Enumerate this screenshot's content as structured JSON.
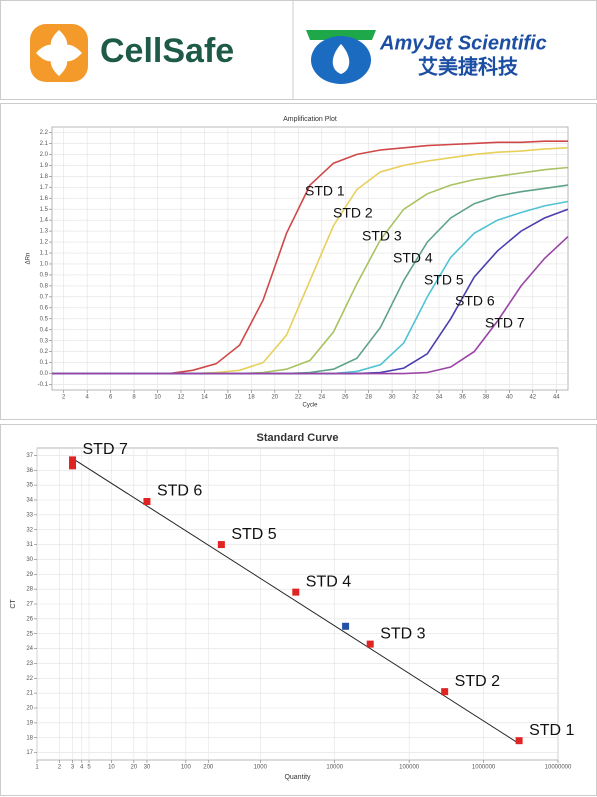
{
  "header": {
    "left_logo": "CellSafe",
    "right_logo": "AmyJet Scientific",
    "right_logo_cn": "艾美捷科技"
  },
  "chart_data": [
    {
      "type": "line",
      "title": "Amplification Plot",
      "x_label": "Cycle",
      "y_label": "ΔRn",
      "x": [
        1,
        3,
        5,
        7,
        9,
        11,
        13,
        15,
        17,
        19,
        21,
        23,
        25,
        27,
        29,
        31,
        33,
        35,
        37,
        39,
        41,
        43,
        45
      ],
      "series": [
        {
          "name": "STD 1",
          "color": "#d04848",
          "values": [
            0,
            0,
            0,
            0,
            0,
            0,
            0.03,
            0.09,
            0.26,
            0.67,
            1.28,
            1.72,
            1.92,
            2.0,
            2.04,
            2.06,
            2.08,
            2.09,
            2.1,
            2.11,
            2.11,
            2.12,
            2.12
          ]
        },
        {
          "name": "STD 2",
          "color": "#e8cf5c",
          "values": [
            0,
            0,
            0,
            0,
            0,
            0,
            0,
            0.01,
            0.03,
            0.1,
            0.35,
            0.85,
            1.35,
            1.68,
            1.84,
            1.9,
            1.94,
            1.97,
            2.0,
            2.02,
            2.03,
            2.05,
            2.06
          ]
        },
        {
          "name": "STD 3",
          "color": "#a9c262",
          "values": [
            0,
            0,
            0,
            0,
            0,
            0,
            0,
            0,
            0,
            0.01,
            0.04,
            0.12,
            0.38,
            0.82,
            1.22,
            1.5,
            1.64,
            1.72,
            1.77,
            1.8,
            1.83,
            1.86,
            1.88
          ]
        },
        {
          "name": "STD 4",
          "color": "#5fa387",
          "values": [
            0,
            0,
            0,
            0,
            0,
            0,
            0,
            0,
            0,
            0,
            0,
            0.01,
            0.04,
            0.14,
            0.42,
            0.85,
            1.2,
            1.42,
            1.55,
            1.62,
            1.66,
            1.69,
            1.72
          ]
        },
        {
          "name": "STD 5",
          "color": "#4fc3d3",
          "values": [
            0,
            0,
            0,
            0,
            0,
            0,
            0,
            0,
            0,
            0,
            0,
            0,
            0,
            0.02,
            0.08,
            0.28,
            0.7,
            1.06,
            1.28,
            1.4,
            1.47,
            1.53,
            1.57
          ]
        },
        {
          "name": "STD 6",
          "color": "#4a3fb0",
          "values": [
            0,
            0,
            0,
            0,
            0,
            0,
            0,
            0,
            0,
            0,
            0,
            0,
            0,
            0,
            0.01,
            0.05,
            0.18,
            0.5,
            0.88,
            1.12,
            1.3,
            1.42,
            1.5
          ]
        },
        {
          "name": "STD 7",
          "color": "#9a45a6",
          "values": [
            0,
            0,
            0,
            0,
            0,
            0,
            0,
            0,
            0,
            0,
            0,
            0,
            0,
            0,
            0,
            0,
            0.01,
            0.06,
            0.2,
            0.48,
            0.8,
            1.05,
            1.25
          ]
        }
      ],
      "xlim": [
        1,
        45
      ],
      "xticks": [
        2,
        4,
        6,
        8,
        10,
        12,
        14,
        16,
        18,
        20,
        22,
        24,
        26,
        28,
        30,
        32,
        34,
        36,
        38,
        40,
        42,
        44
      ],
      "ylim": [
        -0.15,
        2.25
      ],
      "yticks": [
        -0.1,
        {
          "value": 0,
          "label": "0.0"
        },
        0.1,
        0.2,
        0.3,
        0.4,
        0.5,
        0.6,
        0.7,
        0.8,
        0.9,
        {
          "value": 1,
          "label": "1.0"
        },
        1.1,
        1.2,
        1.3,
        1.4,
        1.5,
        1.6,
        1.7,
        1.8,
        1.9,
        {
          "value": 2,
          "label": "2.0"
        },
        2.1,
        2.2
      ],
      "grid": true
    },
    {
      "type": "scatter",
      "title": "Standard Curve",
      "x_label": "Quantity",
      "y_label": "CT",
      "x_log": true,
      "series": [
        {
          "color": "#e02424",
          "x": [
            3,
            3,
            30,
            300,
            3000,
            30000,
            300000,
            3000000
          ],
          "values": [
            36.3,
            36.7,
            33.9,
            31.0,
            27.8,
            24.3,
            21.1,
            17.8
          ]
        },
        {
          "color": "#2450a8",
          "x": [
            14000
          ],
          "values": [
            25.5
          ]
        }
      ],
      "annotations": [
        "STD 7",
        "STD 6",
        "STD 5",
        "STD 4",
        "STD 3",
        "STD 2",
        "STD 1"
      ],
      "trend_line": {
        "x": [
          3,
          3000000
        ],
        "values": [
          36.8,
          17.6
        ]
      },
      "xlim": [
        1,
        10000000
      ],
      "xticks": [
        1,
        2,
        3,
        4,
        5,
        10,
        20,
        30,
        100,
        200,
        1000,
        10000,
        100000,
        1000000,
        10000000
      ],
      "ylim": [
        16.5,
        37.5
      ],
      "yticks": [
        17,
        18,
        19,
        20,
        21,
        22,
        23,
        24,
        25,
        26,
        27,
        28,
        29,
        30,
        31,
        32,
        33,
        34,
        35,
        36,
        37
      ],
      "grid": true
    }
  ]
}
